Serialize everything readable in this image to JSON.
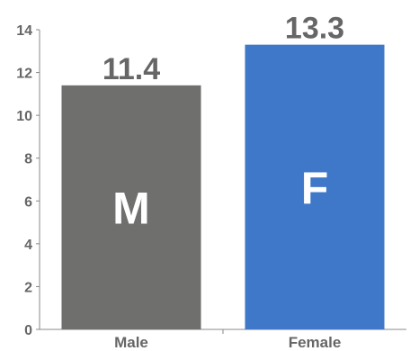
{
  "chart_data": {
    "type": "bar",
    "title": "",
    "xlabel": "",
    "ylabel": "",
    "categories": [
      "Male",
      "Female"
    ],
    "values": [
      11.4,
      13.3
    ],
    "value_labels": [
      "11.4",
      "13.3"
    ],
    "bar_letters": [
      "M",
      "F"
    ],
    "colors": [
      "#6f6f6d",
      "#3f78c9"
    ],
    "ylim": [
      0,
      14
    ],
    "yticks": [
      0,
      2,
      4,
      6,
      8,
      10,
      12,
      14
    ],
    "grid": false,
    "legend": "none"
  }
}
